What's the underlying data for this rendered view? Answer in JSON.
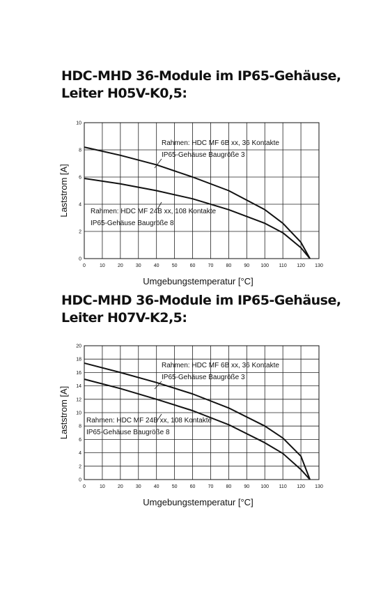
{
  "chart_data": [
    {
      "type": "line",
      "title": [
        "HDC-MHD 36-Module im IP65-Gehäuse,",
        "Leiter H05V-K0,5:"
      ],
      "x_label": "Umgebungstemperatur [°C]",
      "y_label": "Laststrom [A]",
      "x": [
        0,
        20,
        40,
        60,
        80,
        100,
        110,
        120,
        125
      ],
      "series": [
        {
          "name": "Rahmen: HDC MF 6B xx, 36 Kontakte",
          "color": "#111111",
          "values": [
            8.2,
            7.6,
            6.9,
            6.0,
            5.0,
            3.6,
            2.6,
            1.2,
            0
          ]
        },
        {
          "name": "Rahmen: HDC MF 24B xx, 108 Kontakte",
          "color": "#111111",
          "values": [
            5.9,
            5.5,
            5.0,
            4.4,
            3.6,
            2.6,
            1.9,
            0.8,
            0
          ]
        }
      ],
      "annotations": [
        "IP65-Gehäuse Baugröße 3",
        "IP65-Gehäuse Baugröße 8"
      ],
      "xlim": [
        0,
        130
      ],
      "xticks": [
        0,
        10,
        20,
        30,
        40,
        50,
        60,
        70,
        80,
        90,
        100,
        110,
        120,
        130
      ],
      "ylim": [
        0,
        10
      ],
      "yticks": [
        0,
        2,
        4,
        6,
        8,
        10
      ],
      "grid": true
    },
    {
      "type": "line",
      "title": [
        "HDC-MHD 36-Module im IP65-Gehäuse,",
        "Leiter H07V-K2,5:"
      ],
      "x_label": "Umgebungstemperatur [°C]",
      "y_label": "Laststrom [A]",
      "x": [
        0,
        20,
        40,
        60,
        80,
        100,
        110,
        120,
        125
      ],
      "series": [
        {
          "name": "Rahmen: HDC MF 6B xx, 36 Kontakte",
          "color": "#111111",
          "values": [
            17.4,
            16.0,
            14.5,
            12.8,
            10.7,
            8.0,
            6.2,
            3.5,
            0
          ]
        },
        {
          "name": "Rahmen: HDC MF 24B xx, 108 Kontakte",
          "color": "#111111",
          "values": [
            15.0,
            13.6,
            12.0,
            10.3,
            8.2,
            5.5,
            3.9,
            1.5,
            0
          ]
        }
      ],
      "annotations": [
        "IP65-Gehäuse Baugröße 3",
        "IP65-Gehäuse Baugröße 8"
      ],
      "xlim": [
        0,
        130
      ],
      "xticks": [
        0,
        10,
        20,
        30,
        40,
        50,
        60,
        70,
        80,
        90,
        100,
        110,
        120,
        130
      ],
      "ylim": [
        0,
        20
      ],
      "yticks": [
        0,
        2,
        4,
        6,
        8,
        10,
        12,
        14,
        16,
        18,
        20
      ],
      "grid": true
    }
  ]
}
